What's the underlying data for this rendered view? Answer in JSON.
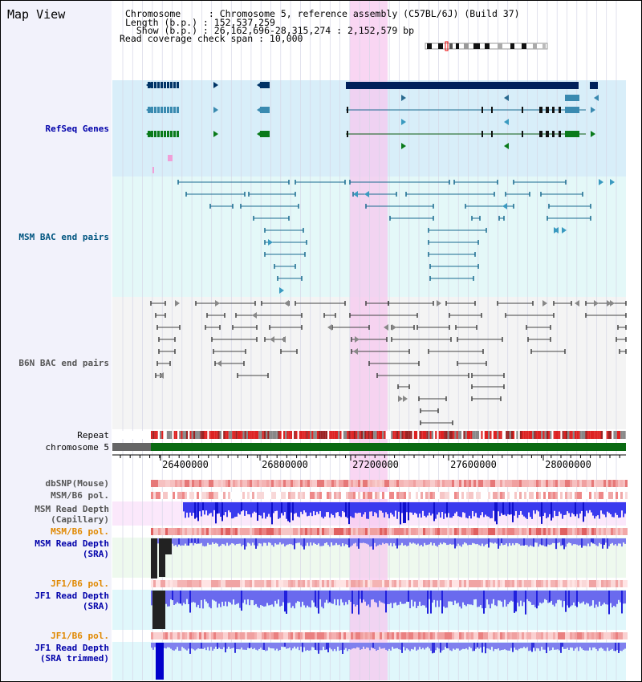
{
  "view": {
    "title": "Map View"
  },
  "info": {
    "chromosome": "Chromosome     : Chromosome 5, reference assembly (C57BL/6J) (Build 37)",
    "length": "Length (b.p.) : 152,537,259",
    "show": "  Show (b.p.) : 26,162,696-28,315,274 : 2,152,579 bp",
    "coverage": "Read coverage check span : 10,000"
  },
  "tracks": {
    "refseq": "RefSeq Genes",
    "msm_bac": "MSM BAC end pairs",
    "b6n_bac": "B6N BAC end pairs",
    "repeat": "Repeat",
    "chromosome": "chromosome 5",
    "dbsnp": "dbSNP(Mouse)",
    "msm_b6_pol_1": "MSM/B6 pol.",
    "msm_depth_cap": "MSM Read Depth\n(Capillary)",
    "msm_b6_pol_2": "MSM/B6 pol.",
    "msm_depth_sra": "MSM Read Depth\n(SRA)",
    "jf1_b6_pol_1": "JF1/B6 pol.",
    "jf1_depth_sra": "JF1 Read Depth\n(SRA)",
    "jf1_b6_pol_2": "JF1/B6 pol.",
    "jf1_depth_trim": "JF1 Read Depth\n(SRA trimmed)"
  },
  "axis": {
    "ticks": [
      "26400000",
      "26800000",
      "27200000",
      "27600000",
      "28000000"
    ]
  },
  "colors": {
    "refseq_label": "#0000aa",
    "msm_label": "#005580",
    "b6n_label": "#555555",
    "orange_label": "#e08800",
    "blue_label": "#0000aa",
    "highlight": "#f7c8ef"
  }
}
